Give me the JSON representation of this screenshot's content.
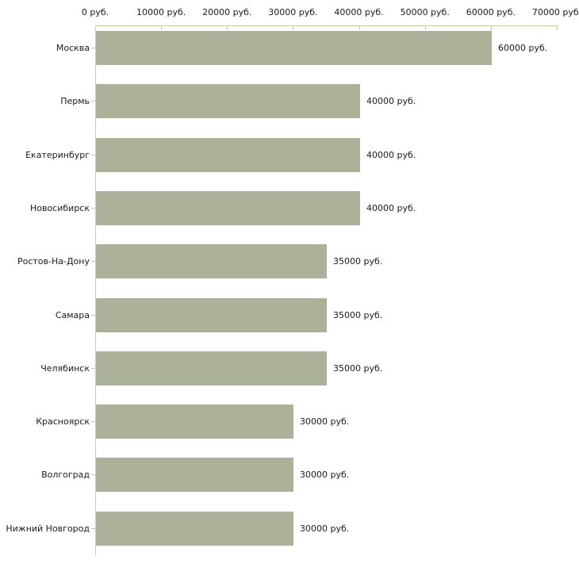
{
  "chart_data": {
    "type": "bar",
    "orientation": "horizontal",
    "categories": [
      "Москва",
      "Пермь",
      "Екатеринбург",
      "Новосибирск",
      "Ростов-На-Дону",
      "Самара",
      "Челябинск",
      "Красноярск",
      "Волгоград",
      "Нижний Новгород"
    ],
    "values": [
      60000,
      40000,
      40000,
      40000,
      35000,
      35000,
      35000,
      30000,
      30000,
      30000
    ],
    "bar_labels": [
      "60000 руб.",
      "40000 руб.",
      "40000 руб.",
      "40000 руб.",
      "35000 руб.",
      "35000 руб.",
      "35000 руб.",
      "30000 руб.",
      "30000 руб.",
      "30000 руб."
    ],
    "x_tick_labels": [
      "0 руб.",
      "10000 руб.",
      "20000 руб.",
      "30000 руб.",
      "40000 руб.",
      "50000 руб.",
      "60000 руб.",
      "70000 руб."
    ],
    "unit": "руб.",
    "xlim": [
      0,
      70000
    ],
    "x_tick_step": 10000,
    "xlabel": "",
    "ylabel": "",
    "grid": false,
    "legend": false,
    "colors": {
      "bar": "#acb199",
      "axis": "#c8c8a2",
      "frame": "#cccccc",
      "text": "#1a1a1a",
      "background": "#ffffff"
    }
  }
}
